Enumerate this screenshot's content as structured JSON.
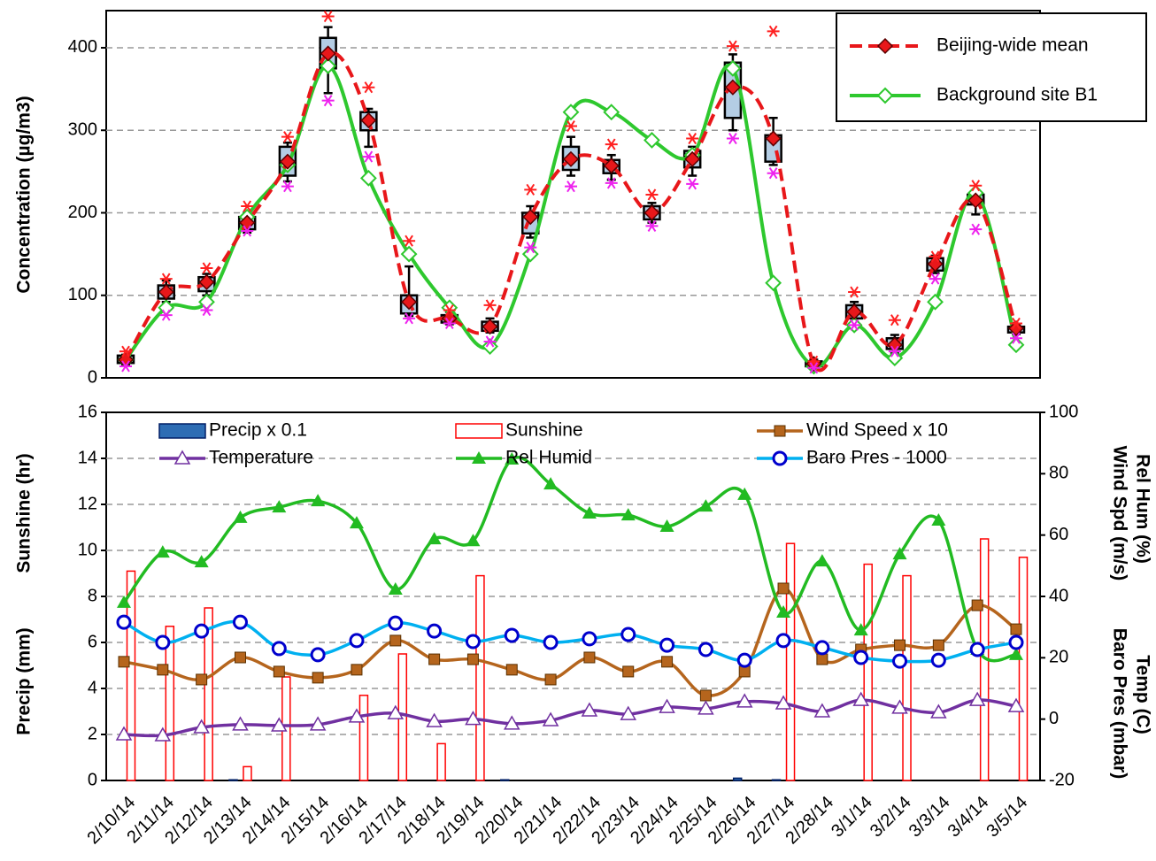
{
  "chart_data": [
    {
      "type": "line",
      "categories": [
        null,
        null,
        null,
        null,
        null,
        null,
        null,
        null,
        null,
        null,
        null,
        null,
        null,
        null,
        null,
        null,
        null,
        null,
        null,
        null,
        null,
        null,
        null
      ],
      "ylabel": "Concentration (µg/m3)",
      "ylim": [
        0,
        445
      ],
      "yticks": [
        0,
        100,
        200,
        300,
        400
      ],
      "grid": true,
      "legend": "top-right",
      "series": [
        {
          "name": "Beijing-wide mean",
          "color": "#e8171a",
          "marker": "diamond",
          "dashed": true,
          "values": [
            22,
            104,
            116,
            188,
            262,
            393,
            312,
            92,
            72,
            62,
            195,
            265,
            257,
            200,
            265,
            352,
            290,
            17,
            80,
            40,
            138,
            215,
            60
          ]
        },
        {
          "name": "Background site B1",
          "color": "#2ec82e",
          "marker": "diamond-open",
          "dashed": false,
          "values": [
            22,
            85,
            92,
            195,
            258,
            378,
            242,
            150,
            85,
            38,
            150,
            322,
            322,
            288,
            270,
            375,
            115,
            14,
            64,
            24,
            92,
            224,
            40
          ]
        }
      ],
      "boxes": {
        "color": "#b4cde4",
        "q1": [
          18,
          96,
          105,
          180,
          245,
          375,
          300,
          78,
          67,
          57,
          175,
          252,
          248,
          192,
          255,
          315,
          262,
          14,
          72,
          35,
          130,
          210,
          55
        ],
        "q3": [
          27,
          112,
          122,
          195,
          280,
          412,
          322,
          100,
          76,
          68,
          200,
          280,
          264,
          208,
          275,
          382,
          294,
          20,
          88,
          48,
          145,
          222,
          62
        ],
        "low": [
          16,
          92,
          100,
          176,
          238,
          345,
          280,
          75,
          65,
          55,
          170,
          245,
          240,
          188,
          245,
          300,
          258,
          12,
          68,
          30,
          127,
          198,
          53
        ],
        "high": [
          28,
          118,
          126,
          200,
          285,
          425,
          326,
          135,
          80,
          72,
          208,
          292,
          270,
          212,
          280,
          392,
          315,
          22,
          92,
          52,
          148,
          226,
          64
        ],
        "max": [
          32,
          120,
          133,
          208,
          292,
          438,
          352,
          166,
          82,
          88,
          228,
          305,
          283,
          222,
          290,
          402,
          420,
          20,
          104,
          70,
          147,
          233,
          66
        ],
        "min": [
          14,
          76,
          82,
          178,
          232,
          336,
          268,
          72,
          66,
          44,
          158,
          232,
          236,
          184,
          235,
          290,
          248,
          12,
          64,
          32,
          120,
          180,
          48
        ],
        "max_color": "#ff2020",
        "min_color": "#ee22ee"
      }
    },
    {
      "type": "combo",
      "categories": [
        "2/10/14",
        "2/11/14",
        "2/12/14",
        "2/13/14",
        "2/14/14",
        "2/15/14",
        "2/16/14",
        "2/17/14",
        "2/18/14",
        "2/19/14",
        "2/20/14",
        "2/21/14",
        "2/22/14",
        "2/23/14",
        "2/24/14",
        "2/25/14",
        "2/26/14",
        "2/27/14",
        "2/28/14",
        "3/1/14",
        "3/2/14",
        "3/3/14",
        "3/4/14",
        "3/5/14"
      ],
      "ylabels": [
        "Sunshine (hr)",
        "Precip (mm)"
      ],
      "y2labels": [
        "Rel Hum (%)",
        "Wind Spd (m/s)",
        "Temp (C)",
        "Baro Pres (mbar)"
      ],
      "ylim": [
        0,
        16
      ],
      "yticks": [
        0,
        2,
        4,
        6,
        8,
        10,
        12,
        14,
        16
      ],
      "y2lim": [
        -20,
        100
      ],
      "y2ticks": [
        -20,
        0,
        20,
        40,
        60,
        80,
        100
      ],
      "grid": true,
      "series": [
        {
          "name": "Precip x 0.1",
          "type": "bar",
          "color": "#2e6db4",
          "outline": false,
          "values": [
            0,
            0,
            0,
            0.03,
            0,
            0,
            0,
            0,
            0,
            0,
            0.03,
            0,
            0,
            0,
            0,
            0,
            0.1,
            0.03,
            0,
            0,
            0,
            0,
            0,
            0
          ]
        },
        {
          "name": "Sunshine",
          "type": "bar",
          "color": "#ff0000",
          "outline": true,
          "values": [
            9.1,
            6.7,
            7.5,
            0.6,
            4.5,
            0,
            3.7,
            5.5,
            1.6,
            8.9,
            0,
            0,
            0,
            0,
            0,
            0,
            0,
            10.3,
            0,
            9.4,
            8.9,
            0,
            10.5,
            9.7
          ]
        },
        {
          "name": "Wind Speed x 10",
          "type": "line",
          "axis": "y2",
          "color": "#b5651d",
          "marker": "square",
          "values": [
            18.7,
            16.1,
            12.9,
            20.1,
            15.5,
            13.5,
            16.1,
            25.6,
            19.5,
            19.5,
            16.1,
            12.9,
            20.1,
            15.5,
            18.7,
            7.7,
            15.5,
            42.6,
            19.5,
            22.7,
            24.1,
            24.1,
            37.1,
            29.3
          ]
        },
        {
          "name": "Temperature",
          "type": "line",
          "axis": "y2",
          "color": "#7030a0",
          "marker": "triangle-open",
          "values": [
            -5.0,
            -5.3,
            -2.7,
            -1.8,
            -2.1,
            -1.8,
            0.8,
            1.9,
            -0.7,
            0,
            -1.5,
            -0.4,
            2.8,
            1.6,
            3.9,
            3.4,
            5.7,
            5.1,
            2.5,
            6.2,
            3.7,
            2.2,
            6.2,
            4.2
          ]
        },
        {
          "name": "Rel Humid",
          "type": "line",
          "axis": "y2",
          "color": "#22bb22",
          "marker": "triangle",
          "values": [
            38,
            54.4,
            51.2,
            65.7,
            69.1,
            71.1,
            63.9,
            42.3,
            58.7,
            58.1,
            84.7,
            76.6,
            67.1,
            66.5,
            62.8,
            69.4,
            73.2,
            34.8,
            51.5,
            29.0,
            53.8,
            64.8,
            22.7,
            21.0
          ]
        },
        {
          "name": "Baro Pres - 1000",
          "type": "line",
          "axis": "y2",
          "color": "#00b0f0",
          "marker": "circle-open",
          "marker_color": "#0000cc",
          "values": [
            31.6,
            25,
            28.7,
            31.6,
            23,
            21,
            25.6,
            31.3,
            28.7,
            25.3,
            27.3,
            25,
            26.2,
            27.6,
            24.1,
            22.7,
            19.2,
            25.6,
            23.3,
            20.1,
            18.9,
            19.2,
            22.7,
            25
          ]
        }
      ]
    }
  ]
}
